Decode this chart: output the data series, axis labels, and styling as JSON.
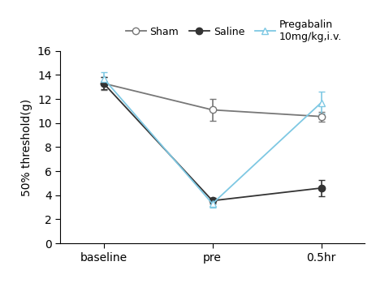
{
  "x_labels": [
    "baseline",
    "pre",
    "0.5hr"
  ],
  "x_positions": [
    0,
    1,
    2
  ],
  "sham": {
    "y": [
      13.3,
      11.1,
      10.55
    ],
    "yerr": [
      0.55,
      0.9,
      0.4
    ],
    "color": "#777777",
    "marker": "o",
    "markerfacecolor": "white",
    "label": "Sham"
  },
  "saline": {
    "y": [
      13.3,
      3.55,
      4.6
    ],
    "yerr": [
      0.5,
      0.25,
      0.7
    ],
    "color": "#333333",
    "marker": "o",
    "markerfacecolor": "#333333",
    "label": "Saline"
  },
  "pregabalin": {
    "y": [
      13.7,
      3.3,
      11.7
    ],
    "yerr": [
      0.55,
      0.35,
      0.9
    ],
    "color": "#7ec8e3",
    "marker": "^",
    "markerfacecolor": "white",
    "label": "Pregabalin\n10mg/kg,i.v."
  },
  "ylabel": "50% threshold(g)",
  "ylim": [
    0,
    16
  ],
  "yticks": [
    0,
    2,
    4,
    6,
    8,
    10,
    12,
    14,
    16
  ],
  "background_color": "#ffffff"
}
